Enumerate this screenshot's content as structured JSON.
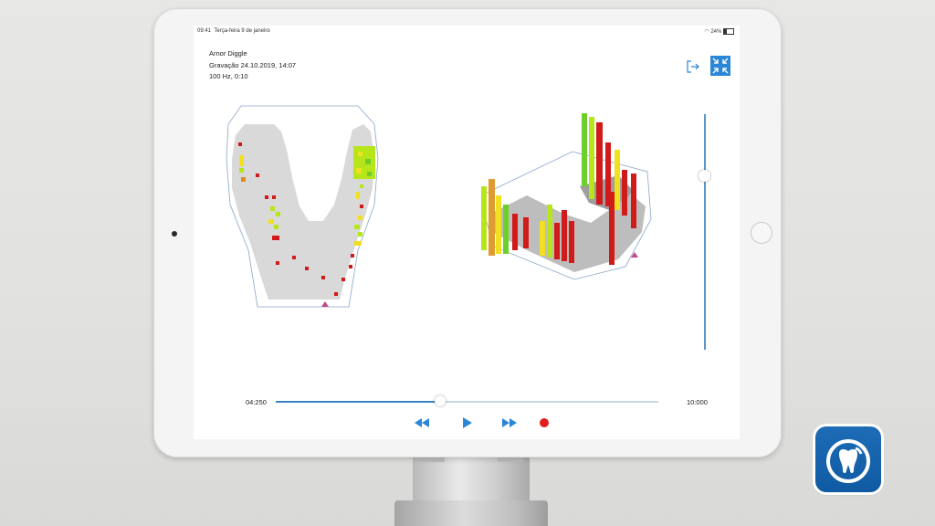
{
  "status_bar": {
    "time": "09:41",
    "date": "Terça-feira 9 de janeiro",
    "battery": "24%"
  },
  "info": {
    "patient": "Arnor Diggle",
    "recording": "Gravação 24.10.2019, 14:07",
    "sampling": "100 Hz, 0:10"
  },
  "playback": {
    "current_time": "04:250",
    "total_time": "10:000",
    "progress": 0.43
  },
  "height_slider": {
    "level": 0.26
  },
  "icons": {
    "exit": "exit-icon",
    "collapse": "collapse-icon",
    "rewind": "rewind-icon",
    "play": "play-icon",
    "fast_forward": "fast-forward-icon",
    "record": "record-icon",
    "brand": "tooth-signal-icon"
  },
  "colors": {
    "accent": "#2a86d6",
    "record": "#e01e1e",
    "pressure_low": "#b6e61a",
    "pressure_mid": "#f0e020",
    "pressure_high": "#d11a1a",
    "arch": "#d9d9d9"
  }
}
